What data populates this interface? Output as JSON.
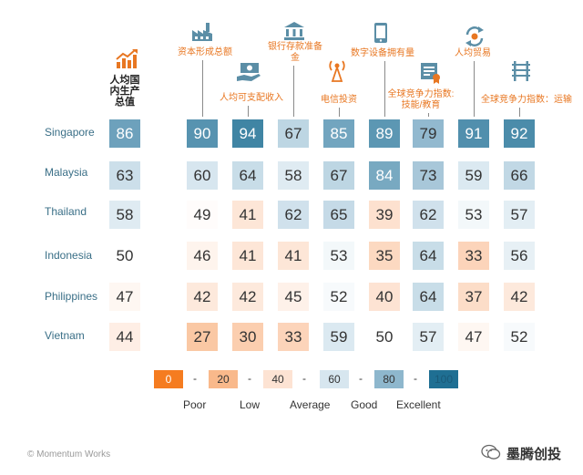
{
  "chart_data": {
    "type": "table",
    "title": "",
    "columns": [
      {
        "label": "人均国内生产总值"
      },
      {
        "label": "资本形成总额"
      },
      {
        "label": "人均可支配收入"
      },
      {
        "label": "银行存款准备金"
      },
      {
        "label": "电信投资"
      },
      {
        "label": "数字设备拥有量"
      },
      {
        "label": "全球竞争力指数:技能/教育"
      },
      {
        "label": "人均贸易"
      },
      {
        "label": "全球竞争力指数：运输"
      }
    ],
    "rows": [
      {
        "country": "Singapore",
        "values": [
          86,
          90,
          94,
          67,
          85,
          89,
          79,
          91,
          92
        ]
      },
      {
        "country": "Malaysia",
        "values": [
          63,
          60,
          64,
          58,
          67,
          84,
          73,
          59,
          66
        ]
      },
      {
        "country": "Thailand",
        "values": [
          58,
          49,
          41,
          62,
          65,
          39,
          62,
          53,
          57
        ]
      },
      {
        "country": "Indonesia",
        "values": [
          50,
          46,
          41,
          41,
          53,
          35,
          64,
          33,
          56
        ]
      },
      {
        "country": "Philippines",
        "values": [
          47,
          42,
          42,
          45,
          52,
          40,
          64,
          37,
          42
        ]
      },
      {
        "country": "Vietnam",
        "values": [
          44,
          27,
          30,
          33,
          59,
          50,
          57,
          47,
          52
        ]
      }
    ],
    "legend": {
      "scale": [
        0,
        20,
        40,
        60,
        80,
        100
      ],
      "labels": [
        "Poor",
        "Low",
        "Average",
        "Good",
        "Excellent"
      ],
      "colors": [
        "#f57c20",
        "#f9b98b",
        "#fde3d3",
        "#d7e6ef",
        "#8eb7cd",
        "#1f6f93"
      ]
    }
  },
  "icons": [
    "growth-chart-icon",
    "factory-icon",
    "cash-hand-icon",
    "bank-icon",
    "antenna-icon",
    "smartphone-icon",
    "certificate-icon",
    "trade-exchange-icon",
    "rail-icon"
  ],
  "footer": {
    "credit": "© Momentum Works",
    "brand": "墨腾创投"
  }
}
